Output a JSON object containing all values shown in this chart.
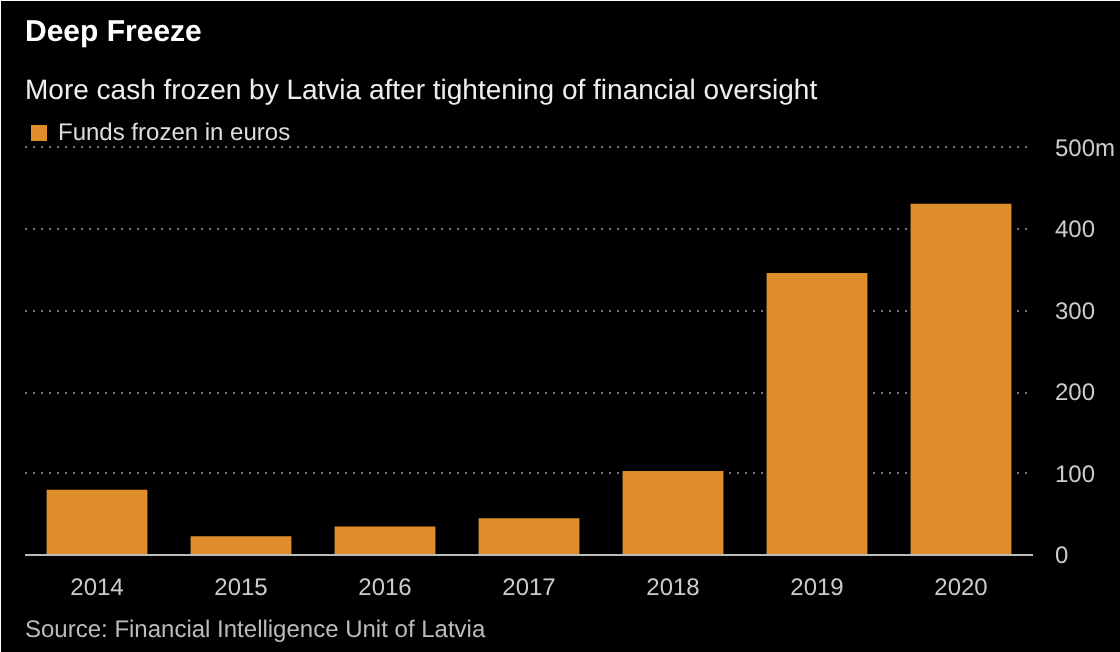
{
  "chart_data": {
    "type": "bar",
    "title": "Deep Freeze",
    "subtitle": "More cash frozen by Latvia after tightening of financial oversight",
    "categories": [
      "2014",
      "2015",
      "2016",
      "2017",
      "2018",
      "2019",
      "2020"
    ],
    "series": [
      {
        "name": "Funds frozen in euros",
        "color": "#e08e2b",
        "values": [
          80,
          23,
          35,
          45,
          103,
          346,
          431
        ]
      }
    ],
    "ylim": [
      0,
      540
    ],
    "yticks": [
      0,
      100,
      200,
      300,
      {
        "value": 500,
        "label": "500m"
      },
      400
    ],
    "grid": "y",
    "legend": "top left",
    "annotations": [
      "Source: Financial Intelligence Unit of Latvia"
    ]
  }
}
